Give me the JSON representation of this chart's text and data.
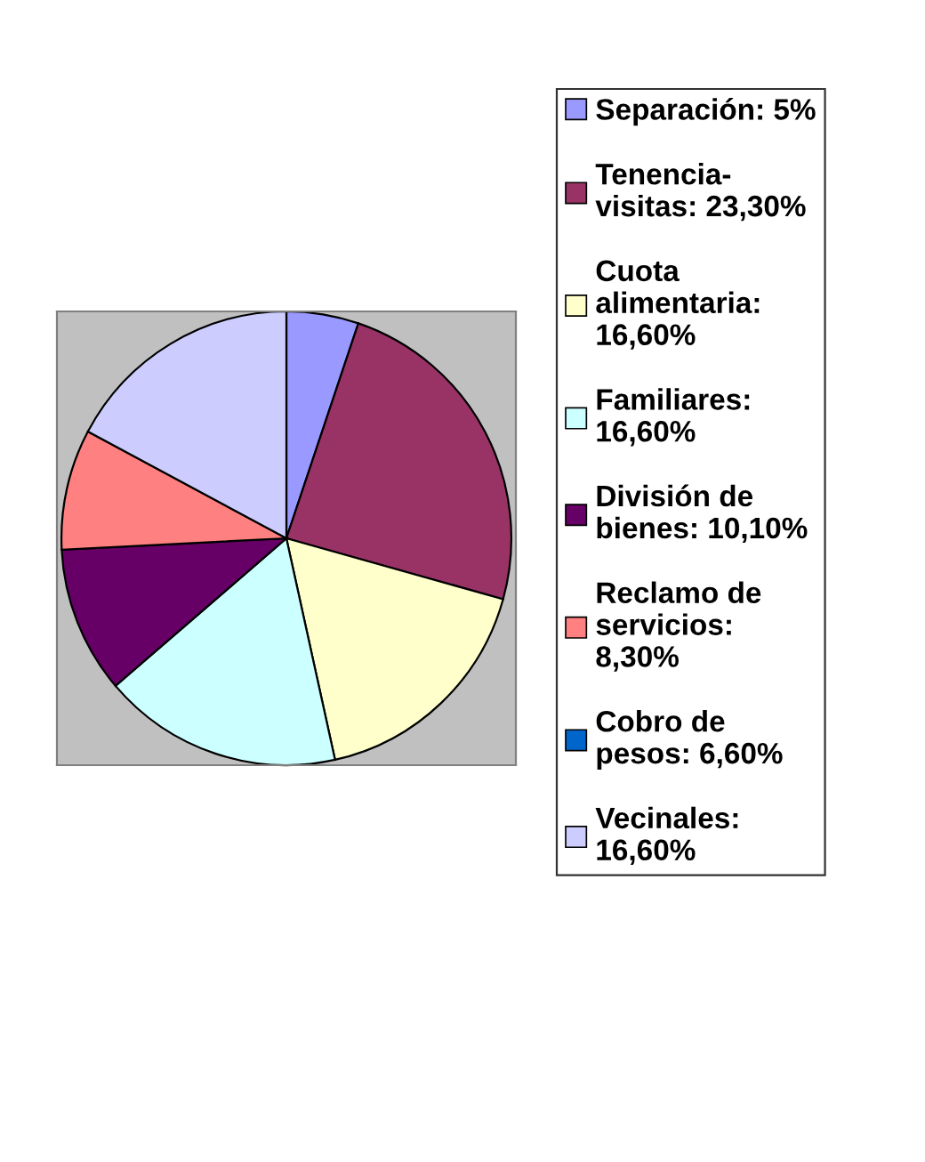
{
  "chart_data": {
    "type": "pie",
    "categories": [
      "Separación: 5%",
      "Tenencia-\nvisitas: 23,30%",
      "Cuota\nalimentaria:\n16,60%",
      "Familiares:\n16,60%",
      "División de\nbienes: 10,10%",
      "Reclamo de\nservicios:\n8,30%",
      "Cobro de\npesos: 6,60%",
      "Vecinales:\n16,60%"
    ],
    "values": [
      5,
      23.3,
      16.6,
      16.6,
      10.1,
      8.3,
      null,
      16.6
    ],
    "colors": [
      "#9999ff",
      "#993366",
      "#ffffcc",
      "#ccffff",
      "#660066",
      "#ff8080",
      "#0066cc",
      "#ccccff"
    ],
    "legend": "right"
  }
}
